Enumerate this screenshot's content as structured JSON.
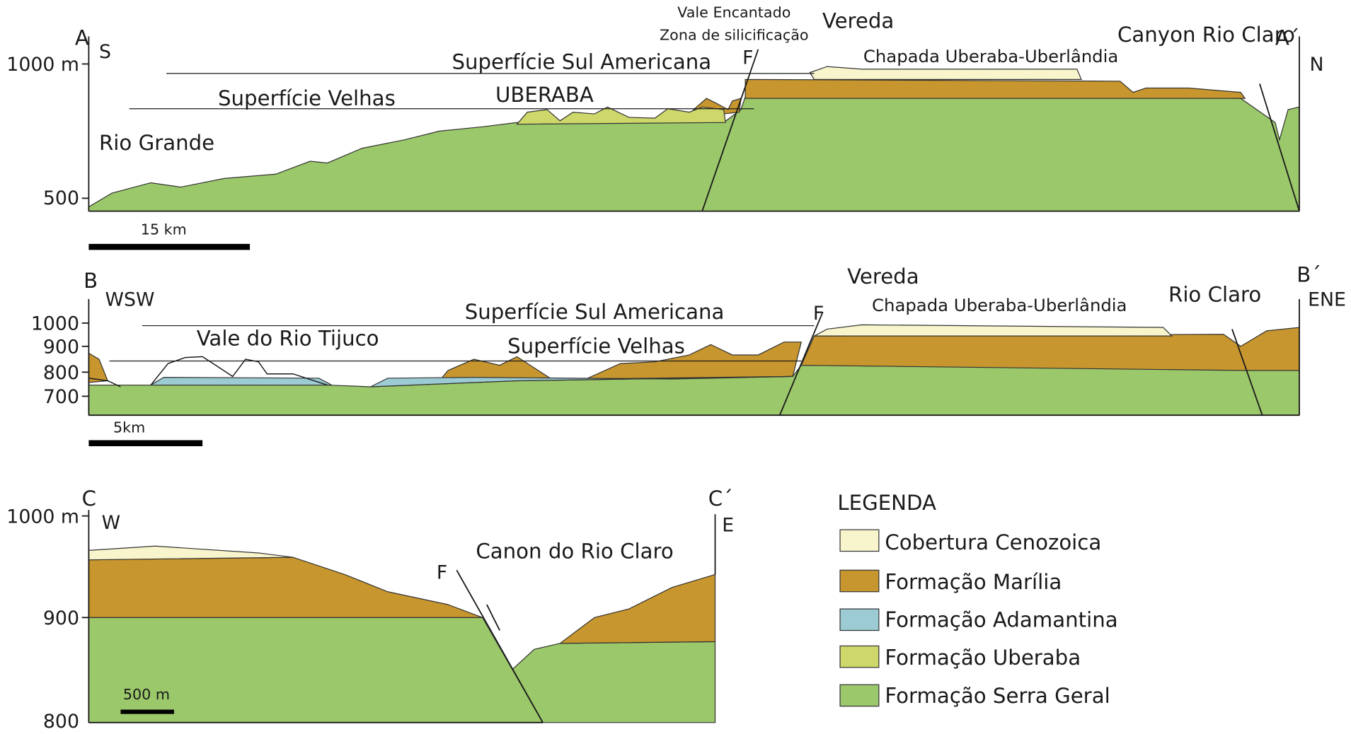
{
  "sections": [
    {
      "start": "A",
      "end": "A´",
      "left_dir": "S",
      "right_dir": "N",
      "axis_labels": [
        "1000 m",
        "500"
      ],
      "scale": "15 km",
      "labels": [
        "Vale Encantado",
        "Zona de silicificação",
        "Vereda",
        "Canyon Rio Claro",
        "Superfície Sul Americana",
        "Chapada Uberaba-Uberlândia",
        "F",
        "Superfície Velhas",
        "UBERABA",
        "Rio Grande"
      ]
    },
    {
      "start": "B",
      "end": "B´",
      "left_dir": "WSW",
      "right_dir": "ENE",
      "axis_labels": [
        "1000",
        "900",
        "800",
        "700"
      ],
      "scale": "5km",
      "labels": [
        "Vereda",
        "Superfície Sul Americana",
        "Chapada Uberaba-Uberlândia",
        "Rio Claro",
        "F",
        "Vale do Rio Tijuco",
        "Superfície Velhas"
      ]
    },
    {
      "start": "C",
      "end": "C´",
      "left_dir": "W",
      "right_dir": "E",
      "axis_labels": [
        "1000 m",
        "900",
        "800"
      ],
      "scale": "500 m",
      "labels": [
        "Canon do Rio Claro",
        "F"
      ]
    }
  ],
  "legend": {
    "title": "LEGENDA",
    "items": [
      "Cobertura Cenozoica",
      "Formação Marília",
      "Formação Adamantina",
      "Formação Uberaba",
      "Formação Serra Geral"
    ]
  }
}
